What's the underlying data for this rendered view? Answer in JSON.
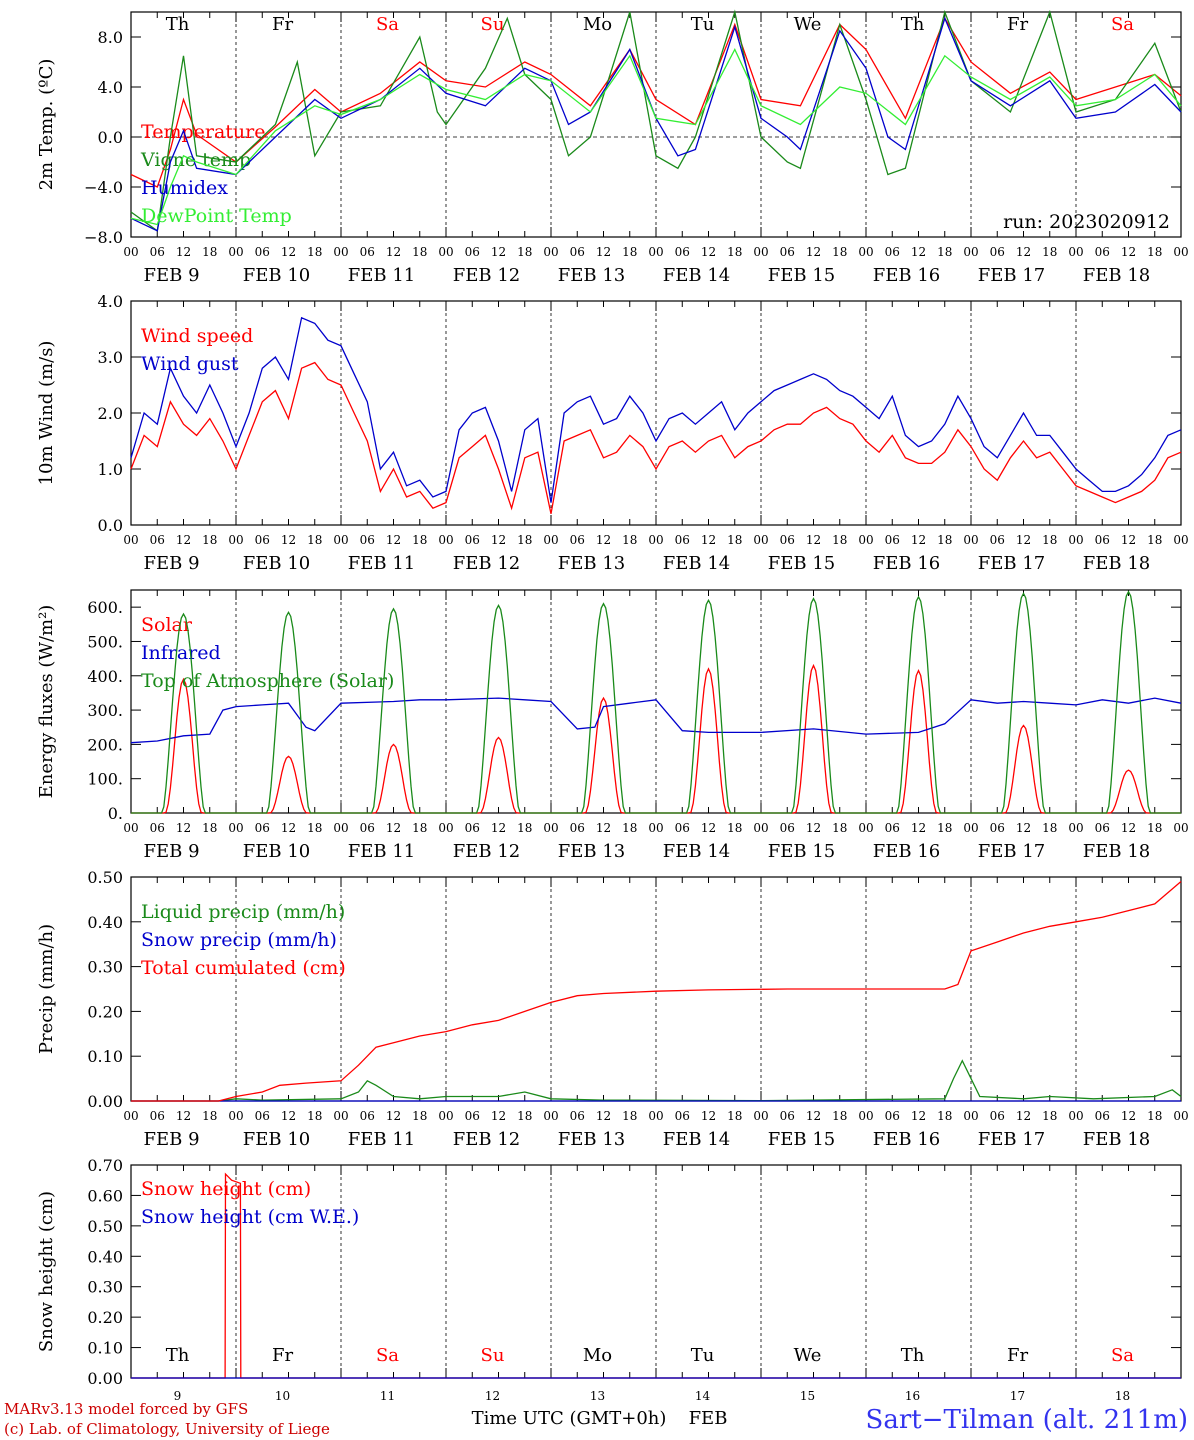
{
  "chart_data": [
    {
      "type": "line",
      "ylabel": "2m Temp. (ºC)",
      "ylim": [
        -8,
        10
      ],
      "yticks": [
        "−8.0",
        "−4.0",
        "0.0",
        "4.0",
        "8.0"
      ],
      "run_label": "run: 2023020912",
      "grid": "vertical dashed at midnight, dashed zero line",
      "legend_position": "left",
      "series": [
        {
          "name": "Temperature",
          "color": "#ff0000",
          "x": [
            0,
            6,
            9,
            12,
            15,
            24,
            33,
            42,
            48,
            57,
            66,
            72,
            81,
            90,
            96,
            105,
            114,
            120,
            129,
            138,
            144,
            153,
            162,
            168,
            177,
            186,
            192,
            201,
            210,
            216,
            225,
            234,
            240
          ],
          "y": [
            -3.0,
            -4.0,
            -1.0,
            3.0,
            0.2,
            -2.0,
            0.8,
            3.8,
            2.0,
            3.5,
            6.0,
            4.5,
            4.0,
            6.0,
            5.0,
            2.5,
            7.0,
            3.0,
            1.0,
            9.0,
            3.0,
            2.5,
            9.0,
            7.0,
            1.5,
            9.5,
            6.0,
            3.5,
            5.2,
            3.0,
            4.0,
            5.0,
            3.3
          ]
        },
        {
          "name": "Vigne temp",
          "color": "#1a8a1a",
          "x": [
            0,
            6,
            9,
            12,
            15,
            24,
            33,
            38,
            42,
            48,
            57,
            66,
            70,
            72,
            81,
            86,
            90,
            96,
            100,
            105,
            114,
            120,
            125,
            129,
            138,
            144,
            150,
            153,
            162,
            168,
            173,
            177,
            186,
            192,
            201,
            210,
            216,
            225,
            234,
            240
          ],
          "y": [
            -6.0,
            -7.5,
            0.0,
            6.5,
            -1.5,
            -2.0,
            1.0,
            6.0,
            -1.5,
            2.0,
            2.5,
            8.0,
            2.0,
            1.0,
            5.5,
            9.5,
            5.0,
            3.0,
            -1.5,
            0.0,
            10.0,
            -1.5,
            -2.5,
            0.0,
            10.0,
            0.0,
            -2.0,
            -2.5,
            9.0,
            3.0,
            -3.0,
            -2.5,
            10.0,
            4.5,
            2.0,
            10.0,
            2.0,
            3.0,
            7.5,
            2.0
          ]
        },
        {
          "name": "Humidex",
          "color": "#0000cc",
          "x": [
            0,
            6,
            9,
            12,
            15,
            24,
            33,
            42,
            48,
            57,
            66,
            72,
            81,
            90,
            96,
            100,
            105,
            114,
            120,
            125,
            129,
            138,
            144,
            150,
            153,
            162,
            168,
            173,
            177,
            186,
            192,
            201,
            210,
            216,
            225,
            234,
            240
          ],
          "y": [
            -6.5,
            -7.5,
            -2.0,
            0.5,
            -2.5,
            -3.0,
            0.0,
            3.0,
            1.5,
            3.0,
            5.5,
            3.5,
            2.5,
            5.5,
            4.5,
            1.0,
            2.0,
            7.0,
            1.5,
            -1.5,
            -1.0,
            8.8,
            1.5,
            0.0,
            -1.0,
            8.5,
            5.5,
            0.0,
            -1.0,
            9.5,
            4.5,
            2.5,
            4.5,
            1.5,
            2.0,
            4.2,
            2.0
          ]
        },
        {
          "name": "DewPoint Temp",
          "color": "#33ee33",
          "x": [
            0,
            6,
            9,
            12,
            15,
            24,
            33,
            42,
            48,
            57,
            66,
            72,
            81,
            90,
            96,
            105,
            114,
            120,
            129,
            138,
            144,
            153,
            162,
            168,
            177,
            186,
            192,
            201,
            210,
            216,
            225,
            234,
            240
          ],
          "y": [
            -6.5,
            -7.0,
            -4.0,
            -1.5,
            -2.0,
            -3.0,
            0.5,
            2.5,
            1.8,
            3.0,
            5.0,
            3.8,
            3.0,
            5.0,
            4.5,
            2.0,
            6.5,
            1.5,
            1.0,
            7.0,
            2.5,
            1.0,
            4.0,
            3.5,
            1.0,
            6.5,
            4.8,
            3.0,
            4.8,
            2.5,
            3.0,
            5.0,
            2.5
          ]
        }
      ]
    },
    {
      "type": "line",
      "ylabel": "10m Wind (m/s)",
      "ylim": [
        0,
        4
      ],
      "yticks": [
        "0.0",
        "1.0",
        "2.0",
        "3.0",
        "4.0"
      ],
      "legend_position": "left",
      "series": [
        {
          "name": "Wind speed",
          "color": "#ff0000",
          "x": [
            0,
            3,
            6,
            9,
            12,
            15,
            18,
            21,
            24,
            27,
            30,
            33,
            36,
            39,
            42,
            45,
            48,
            51,
            54,
            57,
            60,
            63,
            66,
            69,
            72,
            75,
            78,
            81,
            84,
            87,
            90,
            93,
            96,
            99,
            102,
            105,
            108,
            111,
            114,
            117,
            120,
            123,
            126,
            129,
            132,
            135,
            138,
            141,
            144,
            147,
            150,
            153,
            156,
            159,
            162,
            165,
            168,
            171,
            174,
            177,
            180,
            183,
            186,
            189,
            192,
            195,
            198,
            201,
            204,
            207,
            210,
            213,
            216,
            219,
            222,
            225,
            228,
            231,
            234,
            237,
            240
          ],
          "y": [
            1.0,
            1.6,
            1.4,
            2.2,
            1.8,
            1.6,
            1.9,
            1.5,
            1.0,
            1.6,
            2.2,
            2.4,
            1.9,
            2.8,
            2.9,
            2.6,
            2.5,
            2.0,
            1.5,
            0.6,
            1.0,
            0.5,
            0.6,
            0.3,
            0.4,
            1.2,
            1.4,
            1.6,
            1.0,
            0.3,
            1.2,
            1.3,
            0.2,
            1.5,
            1.6,
            1.7,
            1.2,
            1.3,
            1.6,
            1.4,
            1.0,
            1.4,
            1.5,
            1.3,
            1.5,
            1.6,
            1.2,
            1.4,
            1.5,
            1.7,
            1.8,
            1.8,
            2.0,
            2.1,
            1.9,
            1.8,
            1.5,
            1.3,
            1.6,
            1.2,
            1.1,
            1.1,
            1.3,
            1.7,
            1.4,
            1.0,
            0.8,
            1.2,
            1.5,
            1.2,
            1.3,
            1.0,
            0.7,
            0.6,
            0.5,
            0.4,
            0.5,
            0.6,
            0.8,
            1.2,
            1.3
          ]
        },
        {
          "name": "Wind gust",
          "color": "#0000cc",
          "x": [
            0,
            3,
            6,
            9,
            12,
            15,
            18,
            21,
            24,
            27,
            30,
            33,
            36,
            39,
            42,
            45,
            48,
            51,
            54,
            57,
            60,
            63,
            66,
            69,
            72,
            75,
            78,
            81,
            84,
            87,
            90,
            93,
            96,
            99,
            102,
            105,
            108,
            111,
            114,
            117,
            120,
            123,
            126,
            129,
            132,
            135,
            138,
            141,
            144,
            147,
            150,
            153,
            156,
            159,
            162,
            165,
            168,
            171,
            174,
            177,
            180,
            183,
            186,
            189,
            192,
            195,
            198,
            201,
            204,
            207,
            210,
            213,
            216,
            219,
            222,
            225,
            228,
            231,
            234,
            237,
            240
          ],
          "y": [
            1.2,
            2.0,
            1.8,
            2.8,
            2.3,
            2.0,
            2.5,
            2.0,
            1.4,
            2.0,
            2.8,
            3.0,
            2.6,
            3.7,
            3.6,
            3.3,
            3.2,
            2.7,
            2.2,
            1.0,
            1.3,
            0.7,
            0.8,
            0.5,
            0.6,
            1.7,
            2.0,
            2.1,
            1.5,
            0.6,
            1.7,
            1.9,
            0.4,
            2.0,
            2.2,
            2.3,
            1.8,
            1.9,
            2.3,
            2.0,
            1.5,
            1.9,
            2.0,
            1.8,
            2.0,
            2.2,
            1.7,
            2.0,
            2.2,
            2.4,
            2.5,
            2.6,
            2.7,
            2.6,
            2.4,
            2.3,
            2.1,
            1.9,
            2.3,
            1.6,
            1.4,
            1.5,
            1.8,
            2.3,
            1.9,
            1.4,
            1.2,
            1.6,
            2.0,
            1.6,
            1.6,
            1.3,
            1.0,
            0.8,
            0.6,
            0.6,
            0.7,
            0.9,
            1.2,
            1.6,
            1.7
          ]
        }
      ]
    },
    {
      "type": "line",
      "ylabel": "Energy fluxes (W/m²)",
      "ylim": [
        0,
        650
      ],
      "yticks": [
        "0.",
        "100.",
        "200.",
        "300.",
        "400.",
        "500.",
        "600."
      ],
      "legend_position": "left",
      "series": [
        {
          "name": "Solar",
          "color": "#ff0000",
          "daily_peak": [
            390,
            165,
            200,
            220,
            335,
            420,
            430,
            415,
            255,
            125
          ]
        },
        {
          "name": "Infrared",
          "color": "#0000cc",
          "x": [
            0,
            6,
            12,
            18,
            21,
            24,
            30,
            36,
            40,
            42,
            48,
            60,
            66,
            72,
            84,
            90,
            96,
            102,
            106,
            108,
            114,
            120,
            126,
            132,
            144,
            156,
            168,
            180,
            186,
            192,
            198,
            204,
            210,
            216,
            222,
            228,
            234,
            240
          ],
          "y": [
            205,
            210,
            225,
            230,
            300,
            310,
            315,
            320,
            250,
            240,
            320,
            325,
            330,
            330,
            335,
            330,
            325,
            245,
            250,
            310,
            320,
            330,
            240,
            235,
            235,
            245,
            230,
            235,
            260,
            330,
            320,
            325,
            320,
            315,
            330,
            320,
            335,
            320
          ]
        },
        {
          "name": "Top of Atmosphere (Solar)",
          "color": "#1a8a1a",
          "daily_peak": [
            580,
            585,
            595,
            605,
            610,
            620,
            625,
            630,
            640,
            645
          ]
        }
      ]
    },
    {
      "type": "line",
      "ylabel": "Precip (mm/h)",
      "ylim": [
        0,
        0.5
      ],
      "yticks": [
        "0.00",
        "0.10",
        "0.20",
        "0.30",
        "0.40",
        "0.50"
      ],
      "legend_position": "left",
      "series": [
        {
          "name": "Liquid precip (mm/h)",
          "color": "#1a8a1a",
          "x": [
            0,
            20,
            24,
            30,
            48,
            52,
            54,
            56,
            60,
            66,
            72,
            84,
            90,
            96,
            108,
            144,
            186,
            188,
            190,
            194,
            204,
            210,
            220,
            234,
            238,
            240
          ],
          "y": [
            0,
            0,
            0.005,
            0.002,
            0.005,
            0.02,
            0.045,
            0.035,
            0.01,
            0.005,
            0.01,
            0.01,
            0.02,
            0.005,
            0.002,
            0.001,
            0.005,
            0.05,
            0.09,
            0.01,
            0.005,
            0.01,
            0.005,
            0.01,
            0.025,
            0.01
          ]
        },
        {
          "name": "Snow precip (mm/h)",
          "color": "#0000cc",
          "x": [
            0,
            240
          ],
          "y": [
            0,
            0
          ]
        },
        {
          "name": "Total cumulated (cm)",
          "color": "#ff0000",
          "x": [
            0,
            20,
            24,
            30,
            34,
            40,
            48,
            52,
            56,
            60,
            66,
            72,
            78,
            84,
            90,
            96,
            102,
            108,
            120,
            132,
            150,
            168,
            186,
            189,
            192,
            198,
            204,
            210,
            216,
            222,
            228,
            234,
            240
          ],
          "y": [
            0,
            0,
            0.01,
            0.02,
            0.035,
            0.04,
            0.045,
            0.08,
            0.12,
            0.13,
            0.145,
            0.155,
            0.17,
            0.18,
            0.2,
            0.22,
            0.235,
            0.24,
            0.245,
            0.248,
            0.25,
            0.25,
            0.25,
            0.26,
            0.335,
            0.355,
            0.375,
            0.39,
            0.4,
            0.41,
            0.425,
            0.44,
            0.49
          ]
        }
      ]
    },
    {
      "type": "line",
      "ylabel": "Snow height (cm)",
      "ylim": [
        0,
        0.7
      ],
      "yticks": [
        "0.00",
        "0.10",
        "0.20",
        "0.30",
        "0.40",
        "0.50",
        "0.60",
        "0.70"
      ],
      "legend_position": "left",
      "series": [
        {
          "name": "Snow height (cm)",
          "color": "#ff0000",
          "x": [
            0,
            21.5,
            21.6,
            23,
            25,
            25.1,
            240
          ],
          "y": [
            0,
            0,
            0.67,
            0.65,
            0.64,
            0,
            0
          ]
        },
        {
          "name": "Snow height (cm W.E.)",
          "color": "#0000cc",
          "x": [
            0,
            240
          ],
          "y": [
            0,
            0
          ]
        }
      ]
    }
  ],
  "axis": {
    "hour_ticks": [
      "00",
      "06",
      "12",
      "18"
    ],
    "dates": [
      "FEB  9",
      "FEB 10",
      "FEB 11",
      "FEB 12",
      "FEB 13",
      "FEB 14",
      "FEB 15",
      "FEB 16",
      "FEB 17",
      "FEB 18"
    ],
    "day_names": [
      "Th",
      "Fr",
      "Sa",
      "Su",
      "Mo",
      "Tu",
      "We",
      "Th",
      "Fr",
      "Sa"
    ],
    "weekend_color": "#ff0000",
    "day_numbers": [
      "9",
      "10",
      "11",
      "12",
      "13",
      "14",
      "15",
      "16",
      "17",
      "18"
    ],
    "xlabel": "Time UTC (GMT+0h)",
    "xlabel_unit": "FEB"
  },
  "footer": {
    "model": "MARv3.13 model forced by GFS",
    "credit": "(c) Lab. of Climatology, University of Liege",
    "station": "Sart−Tilman (alt. 211m)"
  }
}
